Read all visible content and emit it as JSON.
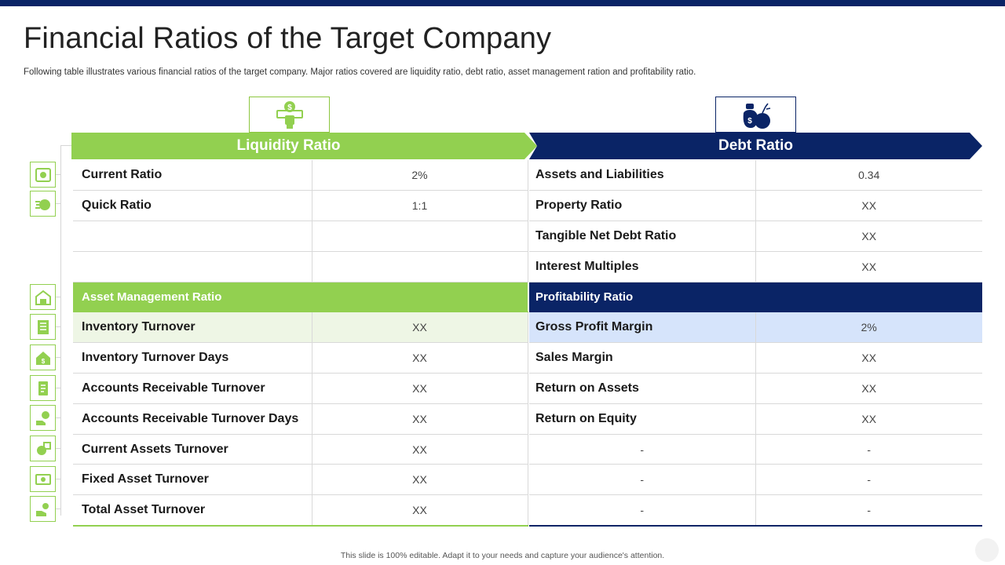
{
  "colors": {
    "navy": "#0a2466",
    "green": "#92d050",
    "light_green": "#eef6e5",
    "light_blue": "#d6e4fb"
  },
  "title": "Financial Ratios of the Target Company",
  "subtitle": "Following table illustrates various financial ratios of the target company. Major ratios covered are liquidity ratio, debt ratio, asset management ration and profitability ratio.",
  "footer": "This slide is 100% editable. Adapt it to your needs and capture your audience's attention.",
  "icons": {
    "liquidity": "money-hand-icon",
    "debt": "money-bag-icon",
    "rail": [
      "safe-icon",
      "fast-money-icon",
      "warehouse-icon",
      "building-icon",
      "house-money-icon",
      "receipt-icon",
      "money-hand-icon",
      "coin-hand-icon",
      "cash-stack-icon",
      "hand-coin-icon"
    ]
  },
  "liquidity": {
    "header": "Liquidity Ratio",
    "rows": [
      {
        "label": "Current Ratio",
        "value": "2%"
      },
      {
        "label": "Quick Ratio",
        "value": "1:1"
      },
      {
        "label": "",
        "value": ""
      },
      {
        "label": "",
        "value": ""
      }
    ]
  },
  "debt": {
    "header": "Debt Ratio",
    "rows": [
      {
        "label": "Assets and Liabilities",
        "value": "0.34"
      },
      {
        "label": "Property Ratio",
        "value": "XX"
      },
      {
        "label": "Tangible Net Debt Ratio",
        "value": "XX"
      },
      {
        "label": "Interest Multiples",
        "value": "XX"
      }
    ]
  },
  "asset_management": {
    "header": "Asset Management Ratio",
    "rows": [
      {
        "label": "Inventory Turnover",
        "value": "XX"
      },
      {
        "label": "Inventory Turnover Days",
        "value": "XX"
      },
      {
        "label": "Accounts Receivable Turnover",
        "value": "XX"
      },
      {
        "label": "Accounts Receivable Turnover Days",
        "value": "XX"
      },
      {
        "label": "Current Assets Turnover",
        "value": "XX"
      },
      {
        "label": "Fixed Asset Turnover",
        "value": "XX"
      },
      {
        "label": "Total Asset Turnover",
        "value": "XX"
      }
    ]
  },
  "profitability": {
    "header": "Profitability Ratio",
    "rows": [
      {
        "label": "Gross Profit Margin",
        "value": "2%"
      },
      {
        "label": "Sales Margin",
        "value": "XX"
      },
      {
        "label": "Return on Assets",
        "value": "XX"
      },
      {
        "label": "Return on Equity",
        "value": "XX"
      },
      {
        "label": "-",
        "value": "-"
      },
      {
        "label": "-",
        "value": "-"
      },
      {
        "label": "-",
        "value": "-"
      }
    ]
  }
}
